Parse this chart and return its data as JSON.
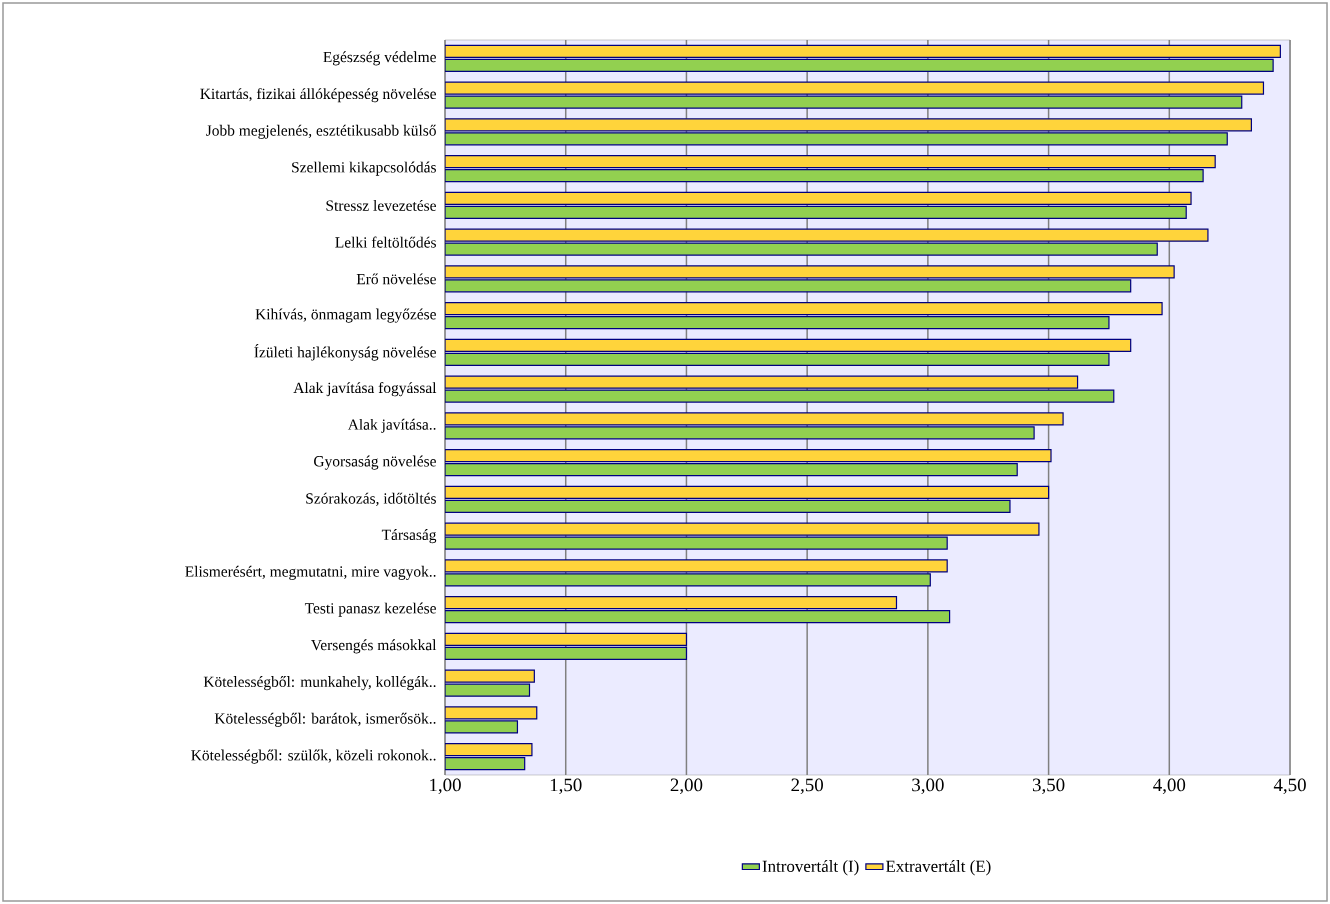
{
  "chart_data": {
    "type": "bar",
    "orientation": "horizontal",
    "categories": [
      "Egészség védelme",
      "Kitartás, fizikai állóképesség növelése",
      "Jobb megjelenés, esztétikusabb külső",
      "Szellemi kikapcsolódás",
      "Stressz levezetése",
      "Lelki feltöltődés",
      "Erő növelése",
      "Kihívás, önmagam legyőzése",
      "Ízületi hajlékonyság növelése",
      "Alak javítása fogyással",
      "Alak javítása..",
      "Gyorsaság növelése",
      "Szórakozás, időtöltés",
      "Társaság",
      "Elismerésért, megmutatni, mire vagyok..",
      "Testi panasz kezelése",
      "Versengés másokkal",
      "Kötelességből: munkahely, kollégák..",
      "Kötelességből: barátok, ismerősök..",
      "Kötelességből: szülők, közeli rokonok.."
    ],
    "series": [
      {
        "name": "Introvertált (I)",
        "color": "#92d050",
        "values": [
          4.43,
          4.3,
          4.24,
          4.14,
          4.07,
          3.95,
          3.84,
          3.75,
          3.75,
          3.77,
          3.44,
          3.37,
          3.34,
          3.08,
          3.01,
          3.09,
          2.0,
          1.35,
          1.3,
          1.33
        ]
      },
      {
        "name": "Extravertált (E)",
        "color": "#ffd43b",
        "values": [
          4.46,
          4.39,
          4.34,
          4.19,
          4.09,
          4.16,
          4.02,
          3.97,
          3.84,
          3.62,
          3.56,
          3.51,
          3.5,
          3.46,
          3.08,
          2.87,
          2.0,
          1.37,
          1.38,
          1.36
        ]
      }
    ],
    "xlim": [
      1,
      4.5
    ],
    "xticks": [
      {
        "value": 1,
        "label": "1,00"
      },
      {
        "value": 1.5,
        "label": "1,50"
      },
      {
        "value": 2,
        "label": "2,00"
      },
      {
        "value": 2.5,
        "label": "2,50"
      },
      {
        "value": 3,
        "label": "3,00"
      },
      {
        "value": 3.5,
        "label": "3,50"
      },
      {
        "value": 4,
        "label": "4,00"
      },
      {
        "value": 4.5,
        "label": "4,50"
      }
    ],
    "grid": "x",
    "legend": "bottom"
  }
}
